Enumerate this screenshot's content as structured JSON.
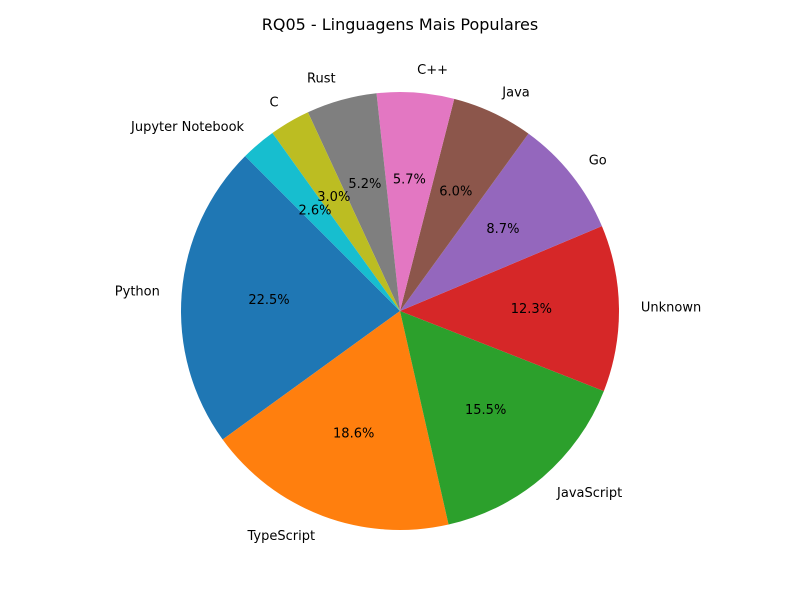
{
  "chart_data": {
    "type": "pie",
    "title": "RQ05 - Linguagens Mais Populares",
    "legend": "none",
    "start_angle_deg": 135,
    "direction": "counterclockwise",
    "slices": [
      {
        "label": "Python",
        "value": 22.5,
        "pct_label": "22.5%",
        "color": "#1f77b4"
      },
      {
        "label": "TypeScript",
        "value": 18.6,
        "pct_label": "18.6%",
        "color": "#ff7f0e"
      },
      {
        "label": "JavaScript",
        "value": 15.5,
        "pct_label": "15.5%",
        "color": "#2ca02c"
      },
      {
        "label": "Unknown",
        "value": 12.3,
        "pct_label": "12.3%",
        "color": "#d62728"
      },
      {
        "label": "Go",
        "value": 8.7,
        "pct_label": "8.7%",
        "color": "#9467bd"
      },
      {
        "label": "Java",
        "value": 6.0,
        "pct_label": "6.0%",
        "color": "#8c564b"
      },
      {
        "label": "C++",
        "value": 5.7,
        "pct_label": "5.7%",
        "color": "#e377c2"
      },
      {
        "label": "Rust",
        "value": 5.2,
        "pct_label": "5.2%",
        "color": "#7f7f7f"
      },
      {
        "label": "C",
        "value": 3.0,
        "pct_label": "3.0%",
        "color": "#bcbd22"
      },
      {
        "label": "Jupyter Notebook",
        "value": 2.6,
        "pct_label": "2.6%",
        "color": "#17becf"
      }
    ]
  }
}
